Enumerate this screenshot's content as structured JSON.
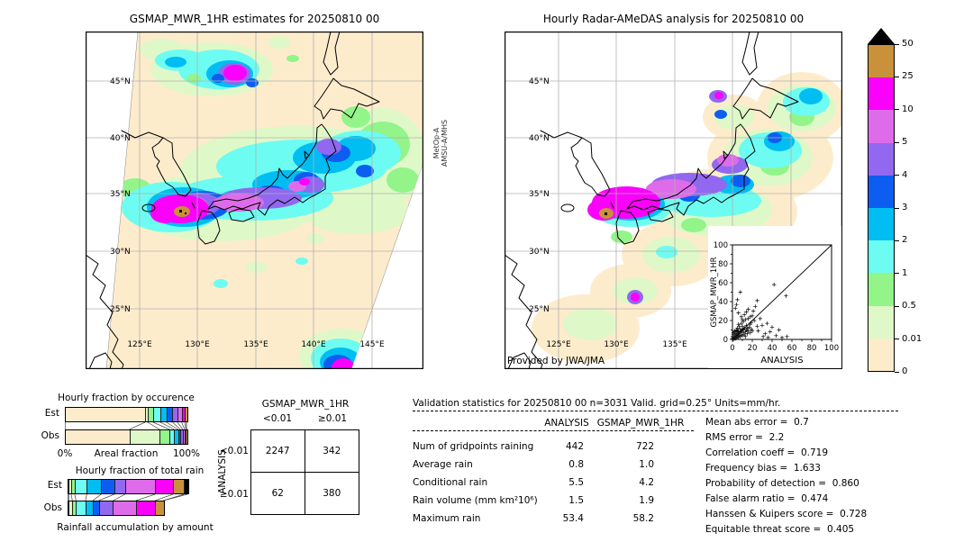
{
  "left_map": {
    "title": "GSMAP_MWR_1HR estimates for 20250810 00",
    "sensor": [
      "MetOp-A",
      "AMSU-A/MHS"
    ],
    "lon_labels": [
      "125°E",
      "130°E",
      "135°E",
      "140°E",
      "145°E"
    ],
    "lat_labels": [
      "45°N",
      "40°N",
      "35°N",
      "30°N",
      "25°N"
    ]
  },
  "right_map": {
    "title": "Hourly Radar-AMeDAS analysis for 20250810 00",
    "credit": "Provided by JWA/JMA",
    "lon_labels": [
      "125°E",
      "130°E",
      "135°E"
    ],
    "lat_labels": [
      "45°N",
      "40°N",
      "35°N",
      "30°N",
      "25°N"
    ]
  },
  "colorbar": {
    "tick_labels": [
      "50",
      "25",
      "10",
      "5",
      "4",
      "3",
      "2",
      "1",
      "0.5",
      "0.01",
      "0"
    ],
    "colors_top_to_bottom": [
      "#c8913a",
      "#fb00fb",
      "#de6cea",
      "#9168ef",
      "#0d5ef0",
      "#00bdf2",
      "#6dfcf1",
      "#93f489",
      "#dff8c8",
      "#fdeccc"
    ],
    "overflow_color": "#000000",
    "units": "mm/hr"
  },
  "contingency": {
    "title": "GSMAP_MWR_1HR",
    "col_labels": [
      "<0.01",
      "≥0.01"
    ],
    "row_axis": "ANALYSIS",
    "row_labels": [
      "<0.01",
      "≥0.01"
    ],
    "values": [
      "2247",
      "342",
      "62",
      "380"
    ]
  },
  "validation": {
    "title": "Validation statistics for 20250810 00  n=3031 Valid. grid=0.25° Units=mm/hr.",
    "col_a": "ANALYSIS",
    "col_b": "GSMAP_MWR_1HR",
    "rows": [
      {
        "label": "Num of gridpoints raining",
        "a": "442",
        "b": "722"
      },
      {
        "label": "Average rain",
        "a": "0.8",
        "b": "1.0"
      },
      {
        "label": "Conditional rain",
        "a": "5.5",
        "b": "4.2"
      },
      {
        "label": "Rain volume (mm km²10⁶)",
        "a": "1.5",
        "b": "1.9"
      },
      {
        "label": "Maximum rain",
        "a": "53.4",
        "b": "58.2"
      }
    ]
  },
  "scores": [
    {
      "label": "Mean abs error",
      "value": "0.7"
    },
    {
      "label": "RMS error",
      "value": "2.2"
    },
    {
      "label": "Correlation coeff",
      "value": "0.719"
    },
    {
      "label": "Frequency bias",
      "value": "1.633"
    },
    {
      "label": "Probability of detection",
      "value": "0.860"
    },
    {
      "label": "False alarm ratio",
      "value": "0.474"
    },
    {
      "label": "Hanssen & Kuipers score",
      "value": "0.728"
    },
    {
      "label": "Equitable threat score",
      "value": "0.405"
    }
  ],
  "chart_data": [
    {
      "type": "bar",
      "stacked": true,
      "orientation": "horizontal",
      "title": "Hourly fraction by occurence",
      "xlabel": "Areal fraction",
      "x_ticks": [
        "0%",
        "100%"
      ],
      "categories": [
        "Est",
        "Obs"
      ],
      "series": [
        {
          "name": "<0.01",
          "color": "#fdeccc",
          "values": [
            66,
            53
          ]
        },
        {
          "name": "0.01-0.5",
          "color": "#dff8c8",
          "values": [
            2,
            25
          ]
        },
        {
          "name": "0.5-1",
          "color": "#93f489",
          "values": [
            4.5,
            8
          ]
        },
        {
          "name": "1-2",
          "color": "#6dfcf1",
          "values": [
            6,
            4
          ]
        },
        {
          "name": "2-3",
          "color": "#00bdf2",
          "values": [
            5,
            3
          ]
        },
        {
          "name": "3-4",
          "color": "#0d5ef0",
          "values": [
            5,
            2
          ]
        },
        {
          "name": "4-5",
          "color": "#9168ef",
          "values": [
            4,
            2
          ]
        },
        {
          "name": "5-10",
          "color": "#de6cea",
          "values": [
            3.5,
            1.5
          ]
        },
        {
          "name": "10-25",
          "color": "#fb00fb",
          "values": [
            2.5,
            1
          ]
        },
        {
          "name": "25-50",
          "color": "#c8913a",
          "values": [
            1.5,
            0.5
          ]
        },
        {
          "name": ">50",
          "color": "#000000",
          "values": [
            0,
            0
          ]
        }
      ]
    },
    {
      "type": "bar",
      "stacked": true,
      "orientation": "horizontal",
      "title": "Hourly fraction of total rain",
      "xlabel": "Rainfall accumulation by amount",
      "categories": [
        "Est",
        "Obs"
      ],
      "series": [
        {
          "name": "<0.01",
          "color": "#fdeccc",
          "values": [
            1,
            1
          ]
        },
        {
          "name": "0.01-0.5",
          "color": "#dff8c8",
          "values": [
            2,
            3
          ]
        },
        {
          "name": "0.5-1",
          "color": "#93f489",
          "values": [
            3,
            3
          ]
        },
        {
          "name": "1-2",
          "color": "#6dfcf1",
          "values": [
            10,
            8
          ]
        },
        {
          "name": "2-3",
          "color": "#00bdf2",
          "values": [
            12,
            6
          ]
        },
        {
          "name": "3-4",
          "color": "#0d5ef0",
          "values": [
            11,
            5
          ]
        },
        {
          "name": "4-5",
          "color": "#9168ef",
          "values": [
            9,
            12
          ]
        },
        {
          "name": "5-10",
          "color": "#de6cea",
          "values": [
            25,
            19
          ]
        },
        {
          "name": "10-25",
          "color": "#fb00fb",
          "values": [
            15,
            16
          ]
        },
        {
          "name": "25-50",
          "color": "#c8913a",
          "values": [
            9,
            7
          ]
        },
        {
          "name": ">50",
          "color": "#000000",
          "values": [
            3,
            0
          ]
        }
      ]
    },
    {
      "type": "scatter",
      "xlabel": "ANALYSIS",
      "ylabel": "GSMAP_MWR_1HR",
      "xlim": [
        0,
        100
      ],
      "ylim": [
        0,
        100
      ],
      "ticks": [
        0,
        20,
        40,
        60,
        80,
        100
      ],
      "identity_line": true,
      "points": [
        [
          0,
          1
        ],
        [
          1,
          0
        ],
        [
          1,
          1
        ],
        [
          1,
          2
        ],
        [
          2,
          1
        ],
        [
          2,
          2
        ],
        [
          2,
          3
        ],
        [
          3,
          1
        ],
        [
          3,
          3
        ],
        [
          3,
          5
        ],
        [
          4,
          2
        ],
        [
          4,
          4
        ],
        [
          4,
          6
        ],
        [
          5,
          3
        ],
        [
          5,
          5
        ],
        [
          5,
          8
        ],
        [
          6,
          2
        ],
        [
          6,
          6
        ],
        [
          6,
          9
        ],
        [
          7,
          4
        ],
        [
          7,
          7
        ],
        [
          8,
          3
        ],
        [
          8,
          8
        ],
        [
          8,
          11
        ],
        [
          9,
          5
        ],
        [
          9,
          9
        ],
        [
          10,
          4
        ],
        [
          10,
          10
        ],
        [
          10,
          14
        ],
        [
          11,
          7
        ],
        [
          11,
          11
        ],
        [
          12,
          5
        ],
        [
          12,
          12
        ],
        [
          13,
          8
        ],
        [
          13,
          3
        ],
        [
          14,
          10
        ],
        [
          14,
          15
        ],
        [
          15,
          6
        ],
        [
          15,
          12
        ],
        [
          16,
          9
        ],
        [
          17,
          13
        ],
        [
          18,
          7
        ],
        [
          18,
          16
        ],
        [
          19,
          11
        ],
        [
          20,
          9
        ],
        [
          2,
          6
        ],
        [
          3,
          8
        ],
        [
          1,
          5
        ],
        [
          5,
          12
        ],
        [
          7,
          14
        ],
        [
          9,
          17
        ],
        [
          4,
          10
        ],
        [
          6,
          16
        ],
        [
          11,
          19
        ],
        [
          13,
          21
        ],
        [
          2,
          9
        ],
        [
          0,
          3
        ],
        [
          1,
          7
        ],
        [
          16,
          22
        ],
        [
          19,
          18
        ],
        [
          8,
          50
        ],
        [
          42,
          58
        ],
        [
          54,
          46
        ],
        [
          5,
          42
        ],
        [
          4,
          37
        ],
        [
          3,
          33
        ],
        [
          25,
          41
        ],
        [
          23,
          35
        ],
        [
          16,
          32
        ],
        [
          14,
          29
        ],
        [
          12,
          26
        ],
        [
          18,
          24
        ],
        [
          22,
          20
        ],
        [
          28,
          22
        ],
        [
          30,
          15
        ],
        [
          35,
          17
        ],
        [
          40,
          13
        ],
        [
          47,
          10
        ],
        [
          25,
          14
        ],
        [
          33,
          6
        ],
        [
          38,
          8
        ],
        [
          44,
          4
        ],
        [
          6,
          28
        ],
        [
          9,
          24
        ],
        [
          20,
          25
        ],
        [
          26,
          9
        ],
        [
          31,
          3
        ],
        [
          36,
          2
        ],
        [
          50,
          2
        ],
        [
          55,
          3
        ],
        [
          10,
          21
        ],
        [
          21,
          30
        ]
      ]
    }
  ]
}
